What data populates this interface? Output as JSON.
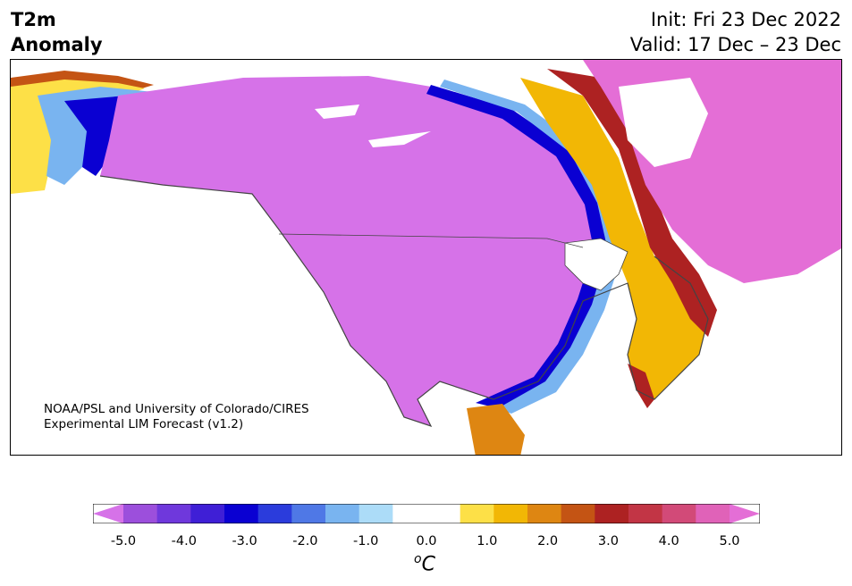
{
  "header": {
    "title_line1": "T2m",
    "title_line2": "Anomaly",
    "init": "Init: Fri 23 Dec 2022",
    "valid": "Valid: 17 Dec – 23 Dec"
  },
  "credit": {
    "line1": "NOAA/PSL and University of Colorado/CIRES",
    "line2": "Experimental LIM Forecast (v1.2)"
  },
  "colorbar": {
    "unit_label": "C",
    "unit_superscript": "o",
    "colors": [
      "#d672e8",
      "#9c4fdc",
      "#6f38dc",
      "#3f1fd6",
      "#0a00d2",
      "#2b3cdc",
      "#4f78e6",
      "#79b4f0",
      "#acdcf8",
      "#ffffff",
      "#ffffff",
      "#fde047",
      "#f2b705",
      "#de8612",
      "#c45414",
      "#ad2222",
      "#c23545",
      "#d24a78",
      "#e062b8",
      "#e46ed6"
    ],
    "ticks": [
      "-5.0",
      "-4.0",
      "-3.0",
      "-2.0",
      "-1.0",
      "0.0",
      "1.0",
      "2.0",
      "3.0",
      "4.0",
      "5.0"
    ]
  },
  "map": {
    "region": "North America",
    "variable": "2m temperature anomaly",
    "cold_color": "#d672e8",
    "warm_color": "#e46ed6"
  }
}
